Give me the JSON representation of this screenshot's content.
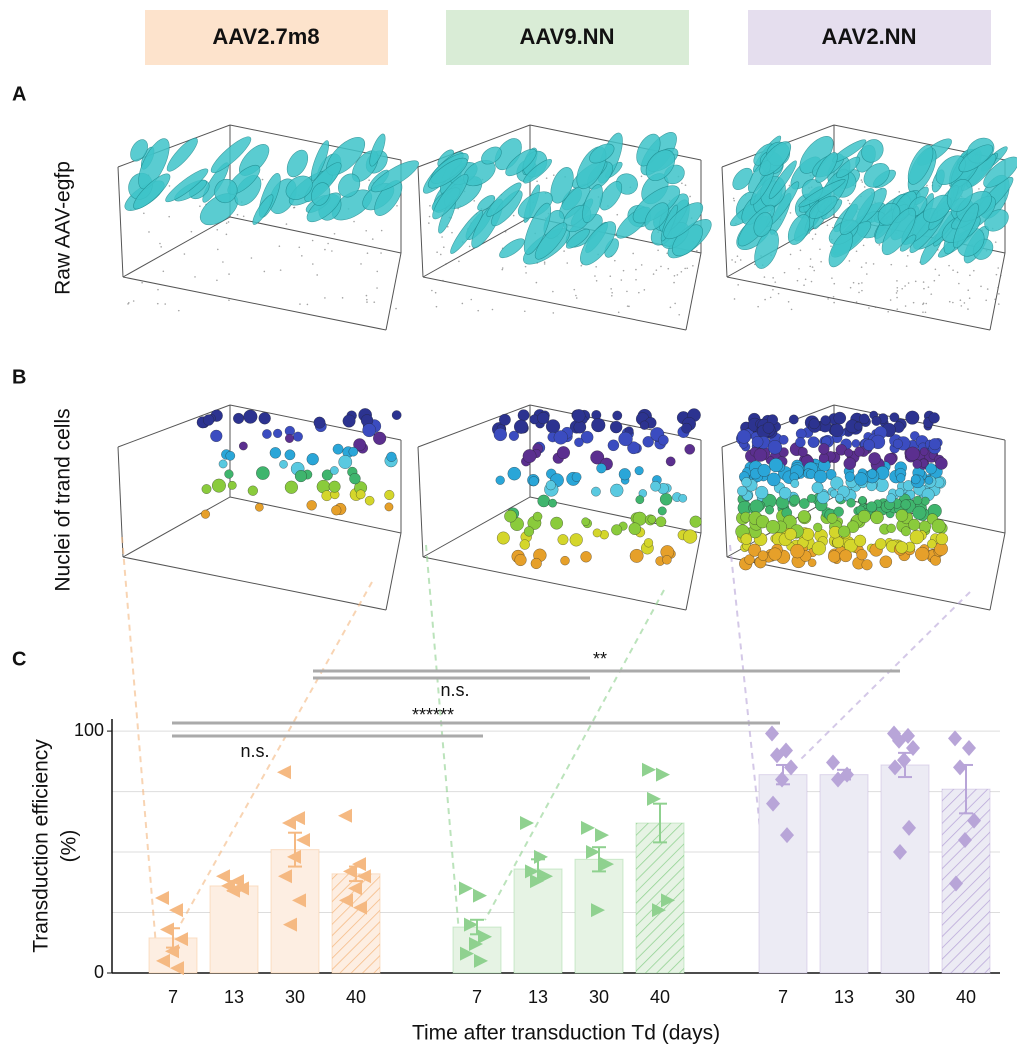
{
  "panels": {
    "A": {
      "label": "A",
      "row_label": "Raw AAV-egfp"
    },
    "B": {
      "label": "B",
      "row_label": "Nuclei of trand cells"
    },
    "C": {
      "label": "C"
    }
  },
  "chart_data": {
    "type": "bar",
    "ylabel": [
      "Transduction efficiency",
      "(%)"
    ],
    "xlabel": "Time after transduction Td (days)",
    "categories": [
      "7",
      "13",
      "30",
      "40"
    ],
    "hatched": [
      false,
      false,
      false,
      true
    ],
    "ylim": [
      0,
      105
    ],
    "yticks": [
      0,
      100
    ],
    "grid_lines": [
      25,
      50,
      75,
      100
    ],
    "series": [
      {
        "name": "AAV2.7m8",
        "color": "#f5b982",
        "header_color": "#fde3cc",
        "marker": "triangle-left",
        "values": [
          14.5,
          36,
          51,
          41
        ],
        "errors": [
          4,
          2,
          7,
          3
        ],
        "points": [
          [
            31,
            26,
            18,
            14,
            9,
            5,
            2
          ],
          [
            40,
            38,
            36,
            35,
            34
          ],
          [
            83,
            64,
            62,
            55,
            48,
            40,
            30,
            20
          ],
          [
            65,
            45,
            42,
            40,
            35,
            30,
            27
          ]
        ]
      },
      {
        "name": "AAV9.NN",
        "color": "#8fd18f",
        "header_color": "#d9ecd6",
        "marker": "triangle-right",
        "values": [
          19,
          43,
          47,
          62
        ],
        "errors": [
          3,
          4,
          5,
          8
        ],
        "points": [
          [
            35,
            32,
            20,
            15,
            12,
            8,
            5
          ],
          [
            62,
            48,
            42,
            40,
            38
          ],
          [
            60,
            57,
            50,
            45,
            26
          ],
          [
            84,
            82,
            72,
            30,
            26
          ]
        ]
      },
      {
        "name": "AAV2.NN",
        "color": "#b8a5d8",
        "header_color": "#e5deee",
        "marker": "diamond",
        "values": [
          82,
          82,
          86,
          76
        ],
        "errors": [
          4,
          2,
          5,
          10
        ],
        "points": [
          [
            99,
            92,
            90,
            85,
            80,
            70,
            57
          ],
          [
            87,
            82,
            80
          ],
          [
            99,
            98,
            96,
            93,
            88,
            85,
            60,
            50
          ],
          [
            97,
            93,
            85,
            63,
            55,
            37
          ]
        ]
      }
    ],
    "annotations": [
      {
        "text": "**"
      },
      {
        "text": "n.s."
      },
      {
        "text": "******"
      },
      {
        "text": "n.s."
      }
    ]
  }
}
